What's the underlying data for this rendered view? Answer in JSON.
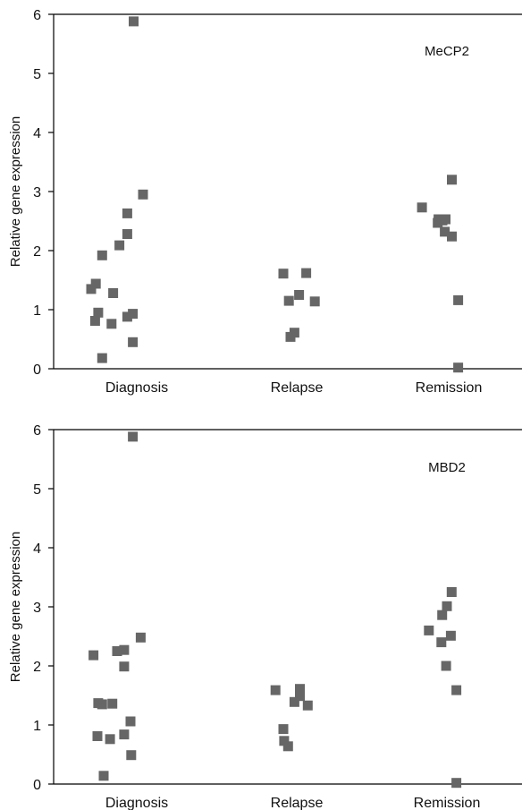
{
  "chart_data": [
    {
      "type": "scatter",
      "panel_label": "MeCP2",
      "ylabel": "Relative gene expression",
      "xlabel": "",
      "categories": [
        "Diagnosis",
        "Relapse",
        "Remission"
      ],
      "yticks": [
        "0",
        "1",
        "2",
        "3",
        "4",
        "5",
        "6"
      ],
      "ylim": [
        0,
        6
      ],
      "marker_color": "#666666",
      "grid": false,
      "series": [
        {
          "category": "Diagnosis",
          "points": [
            {
              "x": -0.58,
              "y": 1.35
            },
            {
              "x": -0.53,
              "y": 0.81
            },
            {
              "x": -0.52,
              "y": 1.44
            },
            {
              "x": -0.49,
              "y": 0.95
            },
            {
              "x": -0.44,
              "y": 1.92
            },
            {
              "x": -0.44,
              "y": 0.18
            },
            {
              "x": -0.32,
              "y": 0.76
            },
            {
              "x": -0.3,
              "y": 1.28
            },
            {
              "x": -0.22,
              "y": 2.09
            },
            {
              "x": -0.12,
              "y": 0.88
            },
            {
              "x": -0.12,
              "y": 2.28
            },
            {
              "x": -0.12,
              "y": 2.63
            },
            {
              "x": -0.05,
              "y": 0.93
            },
            {
              "x": -0.05,
              "y": 0.45
            },
            {
              "x": -0.04,
              "y": 5.88
            },
            {
              "x": 0.08,
              "y": 2.95
            }
          ]
        },
        {
          "category": "Relapse",
          "points": [
            {
              "x": -0.17,
              "y": 1.61
            },
            {
              "x": -0.1,
              "y": 1.15
            },
            {
              "x": -0.08,
              "y": 0.54
            },
            {
              "x": -0.03,
              "y": 0.61
            },
            {
              "x": 0.03,
              "y": 1.25
            },
            {
              "x": 0.12,
              "y": 1.62
            },
            {
              "x": 0.23,
              "y": 1.14
            }
          ]
        },
        {
          "category": "Remission",
          "points": [
            {
              "x": -0.34,
              "y": 2.73
            },
            {
              "x": -0.14,
              "y": 2.47
            },
            {
              "x": -0.13,
              "y": 2.53
            },
            {
              "x": -0.08,
              "y": 2.51
            },
            {
              "x": -0.05,
              "y": 2.32
            },
            {
              "x": -0.04,
              "y": 2.53
            },
            {
              "x": 0.04,
              "y": 3.2
            },
            {
              "x": 0.04,
              "y": 2.24
            },
            {
              "x": 0.12,
              "y": 1.16
            },
            {
              "x": 0.12,
              "y": 0.02
            }
          ]
        }
      ]
    },
    {
      "type": "scatter",
      "panel_label": "MBD2",
      "ylabel": "Relative gene expression",
      "xlabel": "",
      "categories": [
        "Diagnosis",
        "Relapse",
        "Remission"
      ],
      "yticks": [
        "0",
        "1",
        "2",
        "3",
        "4",
        "5",
        "6"
      ],
      "ylim": [
        0,
        6
      ],
      "marker_color": "#666666",
      "grid": false,
      "series": [
        {
          "category": "Diagnosis",
          "points": [
            {
              "x": -0.55,
              "y": 2.18
            },
            {
              "x": -0.5,
              "y": 0.81
            },
            {
              "x": -0.49,
              "y": 1.37
            },
            {
              "x": -0.44,
              "y": 1.35
            },
            {
              "x": -0.42,
              "y": 0.14
            },
            {
              "x": -0.34,
              "y": 0.76
            },
            {
              "x": -0.31,
              "y": 1.36
            },
            {
              "x": -0.25,
              "y": 2.25
            },
            {
              "x": -0.16,
              "y": 2.27
            },
            {
              "x": -0.16,
              "y": 1.99
            },
            {
              "x": -0.16,
              "y": 0.84
            },
            {
              "x": -0.08,
              "y": 1.06
            },
            {
              "x": -0.07,
              "y": 0.49
            },
            {
              "x": -0.05,
              "y": 5.88
            },
            {
              "x": 0.05,
              "y": 2.48
            }
          ]
        },
        {
          "category": "Relapse",
          "points": [
            {
              "x": -0.27,
              "y": 1.59
            },
            {
              "x": -0.17,
              "y": 0.93
            },
            {
              "x": -0.16,
              "y": 0.73
            },
            {
              "x": -0.11,
              "y": 0.64
            },
            {
              "x": -0.03,
              "y": 1.39
            },
            {
              "x": 0.04,
              "y": 1.61
            },
            {
              "x": 0.04,
              "y": 1.49
            },
            {
              "x": 0.14,
              "y": 1.33
            }
          ]
        },
        {
          "category": "Remission",
          "points": [
            {
              "x": -0.23,
              "y": 2.6
            },
            {
              "x": -0.07,
              "y": 2.4
            },
            {
              "x": -0.06,
              "y": 2.86
            },
            {
              "x": -0.01,
              "y": 2.0
            },
            {
              "x": 0.0,
              "y": 3.01
            },
            {
              "x": 0.05,
              "y": 2.51
            },
            {
              "x": 0.06,
              "y": 3.25
            },
            {
              "x": 0.12,
              "y": 1.59
            },
            {
              "x": 0.12,
              "y": 0.02
            }
          ]
        }
      ]
    }
  ]
}
